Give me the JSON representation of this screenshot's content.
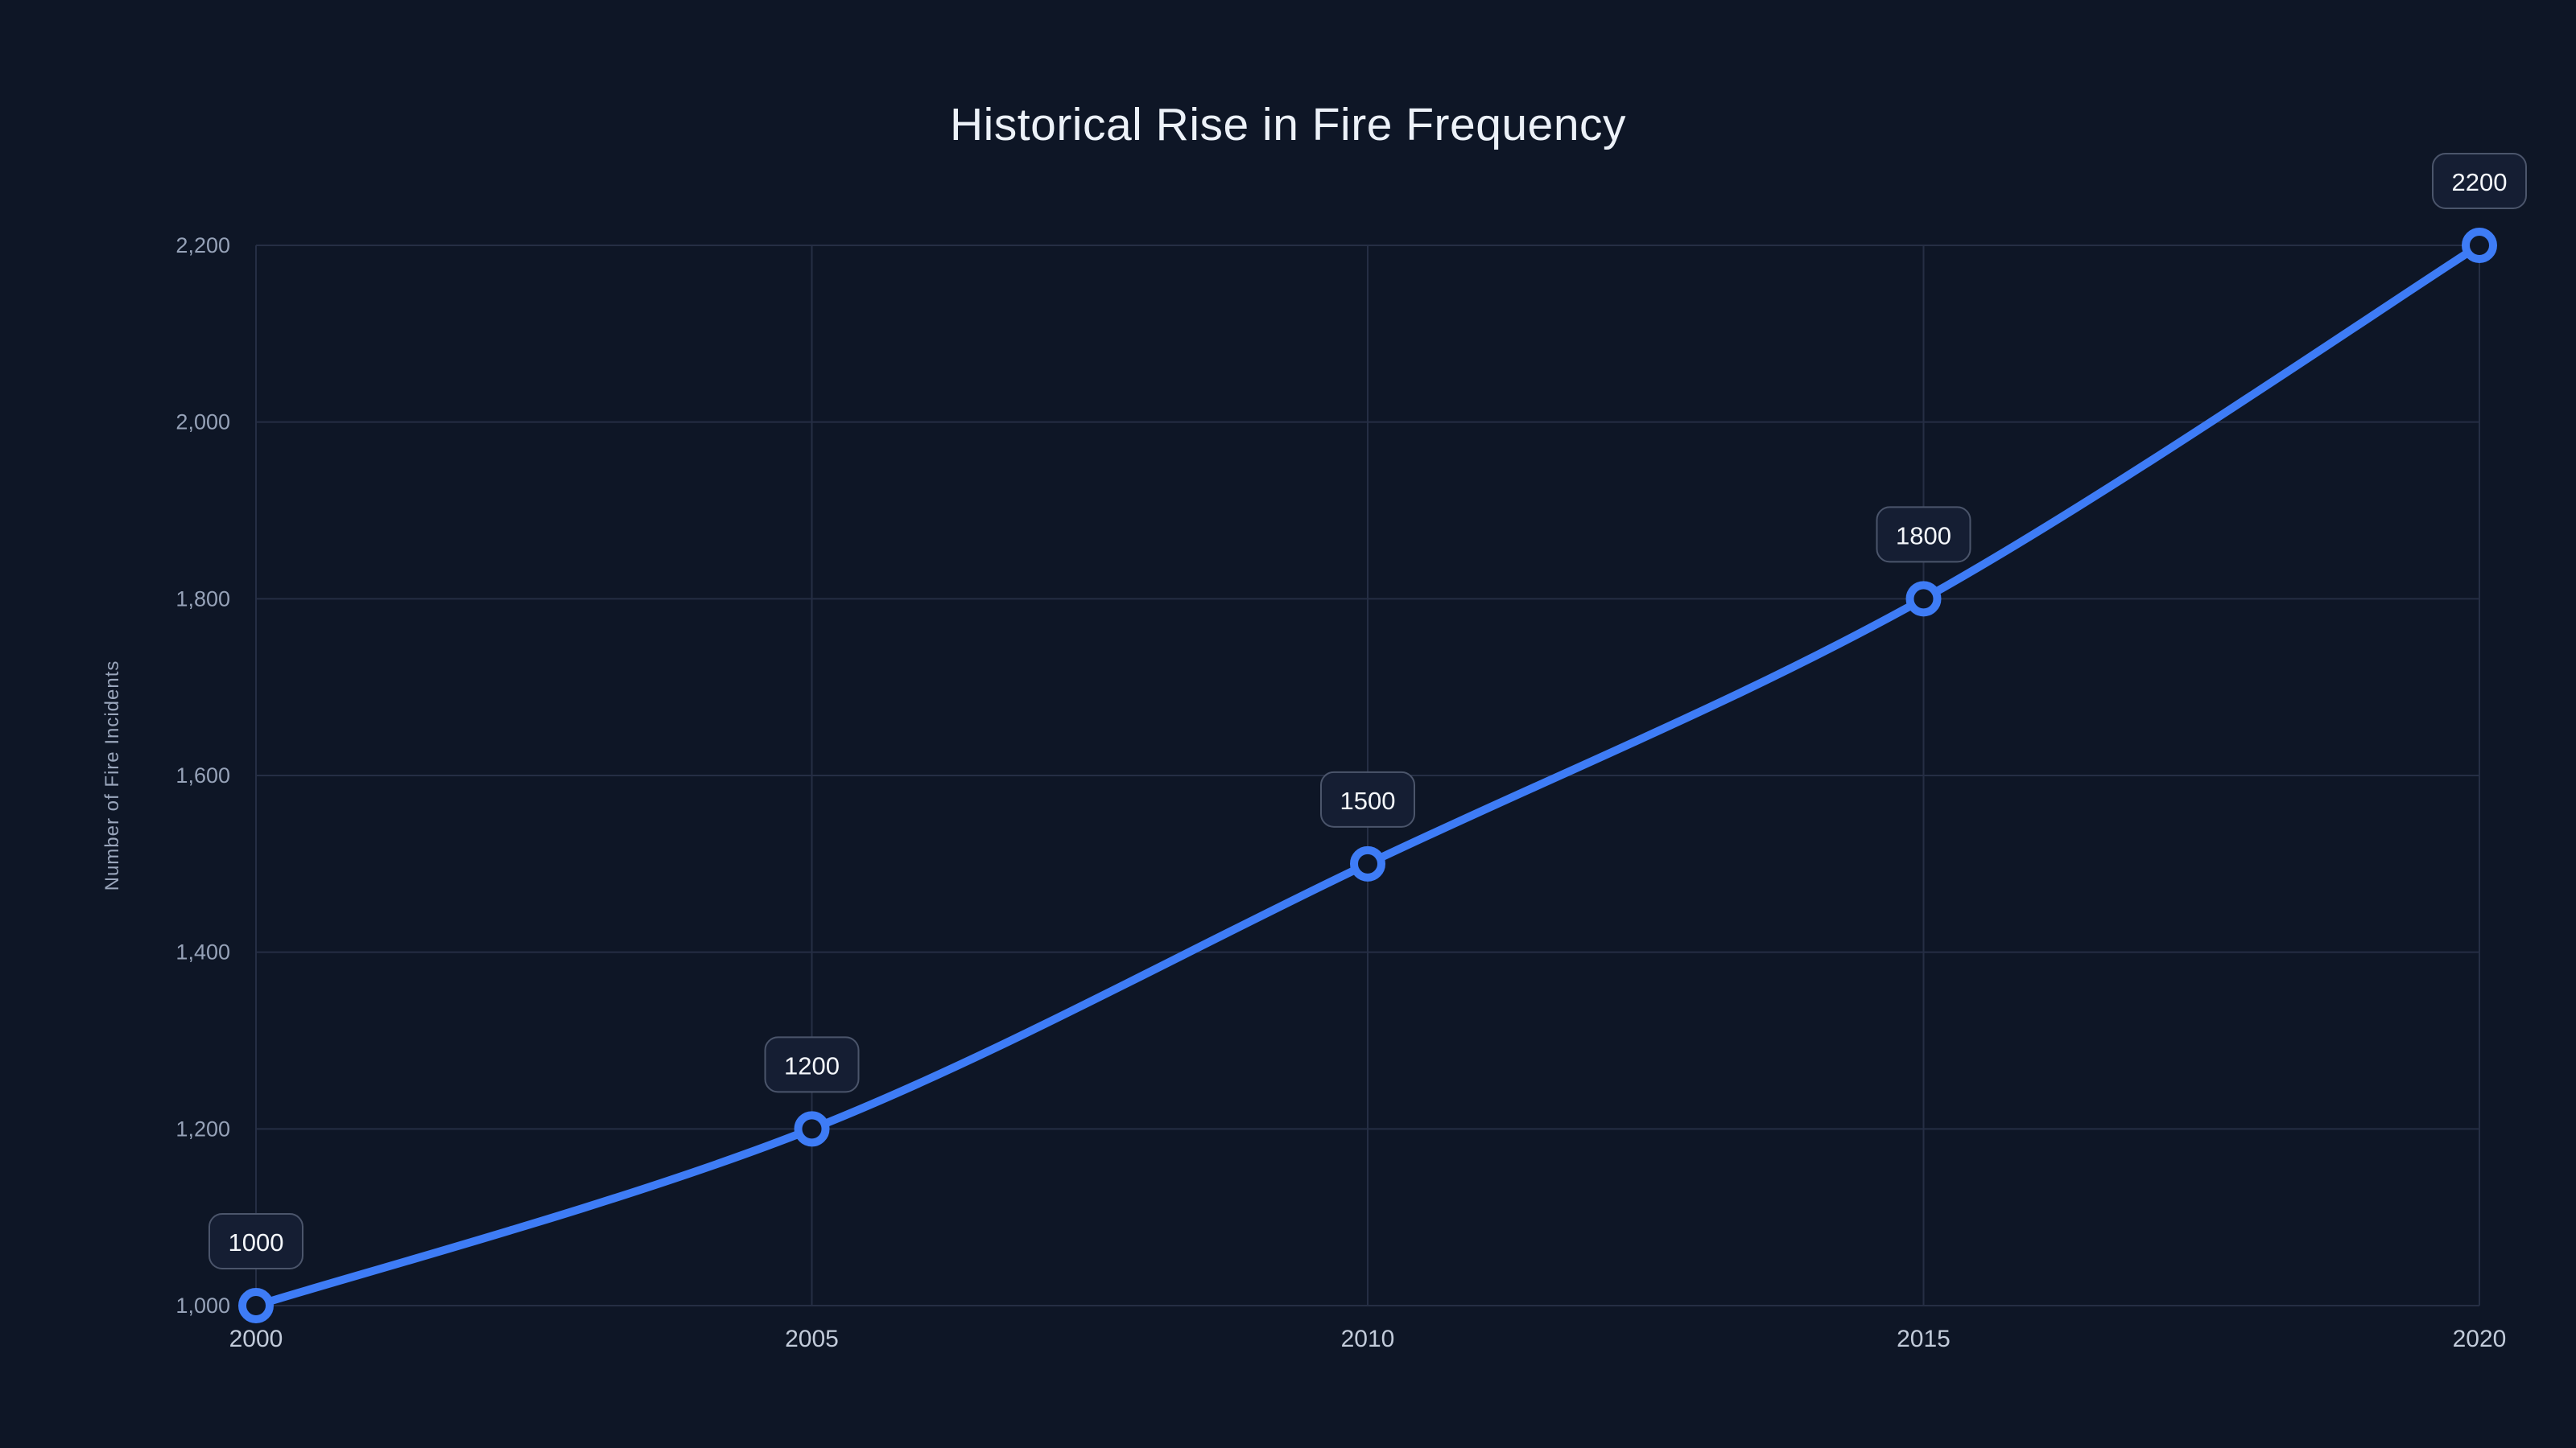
{
  "chart_data": {
    "type": "line",
    "title": "Historical Rise in Fire Frequency",
    "xlabel": "",
    "ylabel": "Number of Fire Incidents",
    "x": [
      2000,
      2005,
      2010,
      2015,
      2020
    ],
    "values": [
      1000,
      1200,
      1500,
      1800,
      2200
    ],
    "point_labels": [
      "1000",
      "1200",
      "1500",
      "1800",
      "2200"
    ],
    "x_tick_labels": [
      "2000",
      "2005",
      "2010",
      "2015",
      "2020"
    ],
    "y_ticks": [
      1000,
      1200,
      1400,
      1600,
      1800,
      2000,
      2200
    ],
    "y_tick_labels": [
      "1,000",
      "1,200",
      "1,400",
      "1,600",
      "1,800",
      "2,000",
      "2,200"
    ],
    "xlim": [
      2000,
      2020
    ],
    "ylim": [
      1000,
      2200
    ],
    "grid": true,
    "legend": false,
    "smooth": true,
    "theme": {
      "background": "#0e1626",
      "grid_color": "#252e44",
      "line_color": "#3e7cf6",
      "marker_fill": "#0e1626",
      "y_tick_color": "#96a2b8",
      "x_tick_color": "#c2cbda",
      "axis_title_color": "#9aa6bc",
      "title_color": "#ecf1f8",
      "badge_fill": "#151e33",
      "badge_border": "#4b556b",
      "badge_text_color": "#f4f7fb"
    }
  }
}
